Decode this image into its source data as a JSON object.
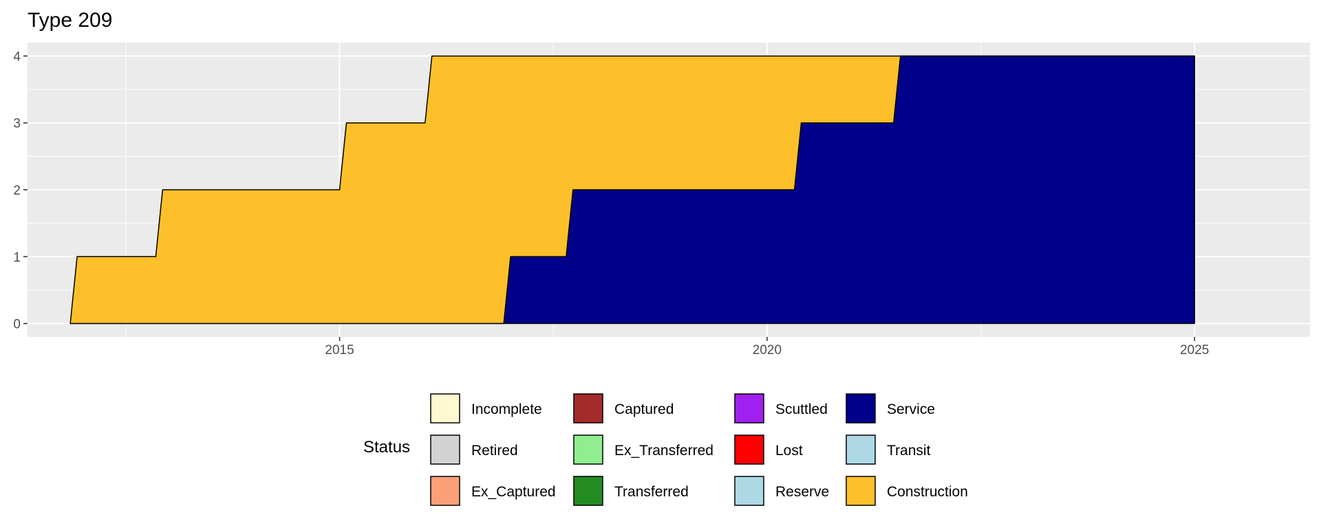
{
  "chart_data": {
    "type": "area",
    "stacked": true,
    "title": "Type 209",
    "xlabel": "",
    "ylabel": "",
    "xlim": [
      2011.35,
      2026.35
    ],
    "ylim": [
      -0.2,
      4.2
    ],
    "x_ticks": [
      2015,
      2020,
      2025
    ],
    "x_tick_labels": [
      "2015",
      "2020",
      "2025"
    ],
    "y_ticks": [
      0,
      1,
      2,
      3,
      4
    ],
    "y_tick_labels": [
      "0",
      "1",
      "2",
      "3",
      "4"
    ],
    "grid": true,
    "panel_background": "#ebebeb",
    "grid_color": "#ffffff",
    "outline_color": "#000000",
    "legend_position": "bottom",
    "series": [
      {
        "name": "Construction",
        "color": "#fec02a",
        "points": [
          [
            2011.85,
            0
          ],
          [
            2011.93,
            1
          ],
          [
            2012.85,
            1
          ],
          [
            2012.93,
            2
          ],
          [
            2015.0,
            2
          ],
          [
            2015.08,
            3
          ],
          [
            2016.0,
            3
          ],
          [
            2016.08,
            4
          ],
          [
            2016.92,
            4
          ],
          [
            2017.0,
            3
          ],
          [
            2017.65,
            3
          ],
          [
            2017.73,
            2
          ],
          [
            2020.32,
            2
          ],
          [
            2020.4,
            1
          ],
          [
            2021.48,
            1
          ],
          [
            2021.56,
            0
          ],
          [
            2025.0,
            0
          ]
        ]
      },
      {
        "name": "Service",
        "color": "#00008b",
        "points": [
          [
            2011.85,
            0
          ],
          [
            2011.93,
            0
          ],
          [
            2012.85,
            0
          ],
          [
            2012.93,
            0
          ],
          [
            2015.0,
            0
          ],
          [
            2015.08,
            0
          ],
          [
            2016.0,
            0
          ],
          [
            2016.08,
            0
          ],
          [
            2016.92,
            0
          ],
          [
            2017.0,
            1
          ],
          [
            2017.65,
            1
          ],
          [
            2017.73,
            2
          ],
          [
            2020.32,
            2
          ],
          [
            2020.4,
            3
          ],
          [
            2021.48,
            3
          ],
          [
            2021.56,
            4
          ],
          [
            2025.0,
            4
          ]
        ]
      }
    ],
    "legend": {
      "title": "Status",
      "columns": [
        [
          {
            "label": "Incomplete",
            "color": "#fff8d0"
          },
          {
            "label": "Retired",
            "color": "#d3d3d3"
          },
          {
            "label": "Ex_Captured",
            "color": "#fda07a"
          }
        ],
        [
          {
            "label": "Captured",
            "color": "#a52a2a"
          },
          {
            "label": "Ex_Transferred",
            "color": "#90ee90"
          },
          {
            "label": "Transferred",
            "color": "#228b22"
          }
        ],
        [
          {
            "label": "Scuttled",
            "color": "#a020f0"
          },
          {
            "label": "Lost",
            "color": "#ff0000"
          },
          {
            "label": "Reserve",
            "color": "#add8e6"
          }
        ],
        [
          {
            "label": "Service",
            "color": "#00008b"
          },
          {
            "label": "Transit",
            "color": "#add8e6"
          },
          {
            "label": "Construction",
            "color": "#fec02a"
          }
        ]
      ]
    }
  }
}
